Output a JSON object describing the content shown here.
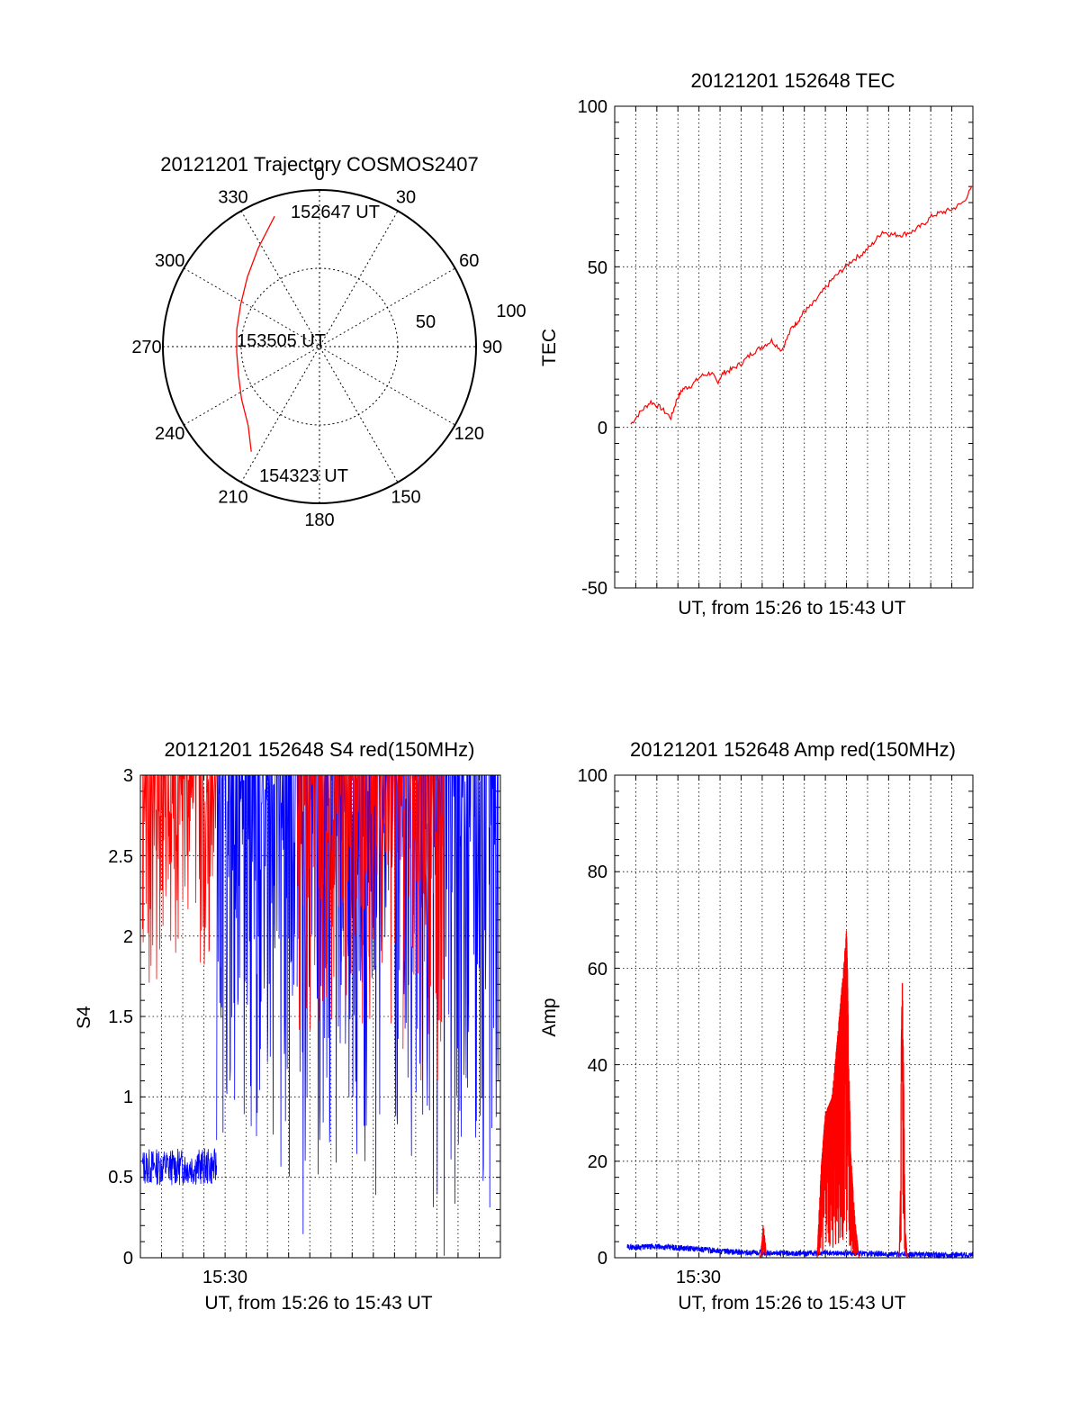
{
  "colors": {
    "red": "#ff0000",
    "blue": "#0000ff",
    "axis": "#000000",
    "grid": "#000000"
  },
  "chart_data": [
    {
      "type": "polar",
      "title": "20121201 Trajectory COSMOS2407",
      "angle_ticks": [
        "0",
        "30",
        "60",
        "90",
        "120",
        "150",
        "180",
        "210",
        "240",
        "270",
        "300",
        "330"
      ],
      "radial_ticks": [
        "50",
        "100"
      ],
      "grid": true,
      "trajectory": {
        "color": "#ff0000",
        "points": [
          {
            "az": 341,
            "zenith": 88
          },
          {
            "az": 328,
            "zenith": 74
          },
          {
            "az": 314,
            "zenith": 64
          },
          {
            "az": 298,
            "zenith": 57
          },
          {
            "az": 282,
            "zenith": 54
          },
          {
            "az": 266,
            "zenith": 53
          },
          {
            "az": 250,
            "zenith": 55
          },
          {
            "az": 236,
            "zenith": 60
          },
          {
            "az": 222,
            "zenith": 68
          },
          {
            "az": 213,
            "zenith": 80
          }
        ]
      },
      "annotations": [
        "152647 UT",
        "153505 UT",
        "154323 UT"
      ]
    },
    {
      "type": "line",
      "title": "20121201 152648 TEC",
      "xlabel": "UT, from 15:26 to 15:43 UT",
      "ylabel": "TEC",
      "ylim": [
        -50,
        100
      ],
      "yticks": [
        "100",
        "50",
        "0",
        "-50"
      ],
      "xlim_minutes": [
        0,
        17
      ],
      "grid": true,
      "series": [
        {
          "color": "#ff0000",
          "x_minutes": [
            0.0,
            0.5,
            1.0,
            1.5,
            2.0,
            2.3,
            2.6,
            3.0,
            3.5,
            4.0,
            4.3,
            4.6,
            5.0,
            5.5,
            6.0,
            6.5,
            7.0,
            7.5,
            8.0,
            8.3,
            8.6,
            9.0,
            9.5,
            10.0,
            10.5,
            11.0,
            11.5,
            12.0,
            12.5,
            13.0,
            13.5,
            14.0,
            14.5,
            15.0,
            15.5,
            16.0,
            16.5,
            17.0
          ],
          "values": [
            1,
            5,
            8,
            6,
            3,
            9,
            12,
            13,
            16,
            17,
            14,
            17,
            18,
            20,
            23,
            25,
            27,
            24,
            31,
            33,
            36,
            38,
            42,
            46,
            49,
            52,
            54,
            57,
            61,
            60,
            60,
            61,
            63,
            66,
            67,
            68,
            70,
            75
          ]
        }
      ]
    },
    {
      "type": "line",
      "title": "20121201 152648 S4 red(150MHz)",
      "xlabel": "UT, from 15:26 to 15:43 UT",
      "ylabel": "S4",
      "ylim": [
        0,
        3
      ],
      "yticks": [
        "3",
        "2.5",
        "2",
        "1.5",
        "1",
        "0.5",
        "0"
      ],
      "xlim_minutes": [
        0,
        17
      ],
      "xticks": [
        {
          "label": "15:30",
          "minute": 4
        }
      ],
      "grid": true,
      "series": [
        {
          "color": "#ff0000",
          "segments": [
            {
              "from": 0.1,
              "to": 3.6,
              "min": 1.6,
              "max": 3.0
            },
            {
              "from": 7.4,
              "to": 12.4,
              "min": 1.2,
              "max": 3.0
            },
            {
              "from": 12.4,
              "to": 14.3,
              "min": 1.0,
              "max": 3.0
            }
          ]
        },
        {
          "color": "#0000ff",
          "segments": [
            {
              "from": 0.1,
              "to": 3.6,
              "min": 0.45,
              "max": 0.68
            },
            {
              "from": 3.6,
              "to": 7.4,
              "min": 0.4,
              "max": 3.0
            },
            {
              "from": 7.4,
              "to": 14.3,
              "min": 0.0,
              "max": 3.0
            },
            {
              "from": 14.3,
              "to": 16.9,
              "min": 0.0,
              "max": 3.0
            }
          ]
        }
      ]
    },
    {
      "type": "line",
      "title": "20121201 152648 Amp red(150MHz)",
      "xlabel": "UT, from 15:26 to 15:43 UT",
      "ylabel": "Amp",
      "ylim": [
        0,
        100
      ],
      "yticks": [
        "100",
        "80",
        "60",
        "40",
        "20",
        "0"
      ],
      "xlim_minutes": [
        0,
        17
      ],
      "xticks": [
        {
          "label": "15:30",
          "minute": 4
        }
      ],
      "grid": true,
      "series": [
        {
          "color": "#0000ff",
          "x_minutes": [
            0.6,
            2.0,
            4.0,
            5.5,
            7.0,
            9.0,
            10.0,
            12.0,
            13.5,
            15.0,
            17.0
          ],
          "values": [
            2.2,
            2.3,
            1.8,
            1.2,
            1.0,
            0.9,
            1.0,
            0.9,
            0.7,
            0.6,
            0.6
          ]
        },
        {
          "color": "#ff0000",
          "x_minutes": [
            6.9,
            7.0,
            7.05,
            7.1,
            7.15,
            7.2,
            9.6,
            9.8,
            10.0,
            10.3,
            10.5,
            10.7,
            10.9,
            11.0,
            11.05,
            11.1,
            11.2,
            11.4,
            11.6,
            13.5,
            13.55,
            13.6,
            13.65,
            13.7,
            13.75,
            13.8,
            13.9
          ],
          "values": [
            0,
            4,
            7,
            5,
            3,
            0,
            0,
            19,
            30,
            33,
            42,
            52,
            62,
            68,
            60,
            45,
            22,
            8,
            0,
            0,
            12,
            45,
            58,
            45,
            20,
            5,
            0
          ]
        }
      ]
    }
  ]
}
